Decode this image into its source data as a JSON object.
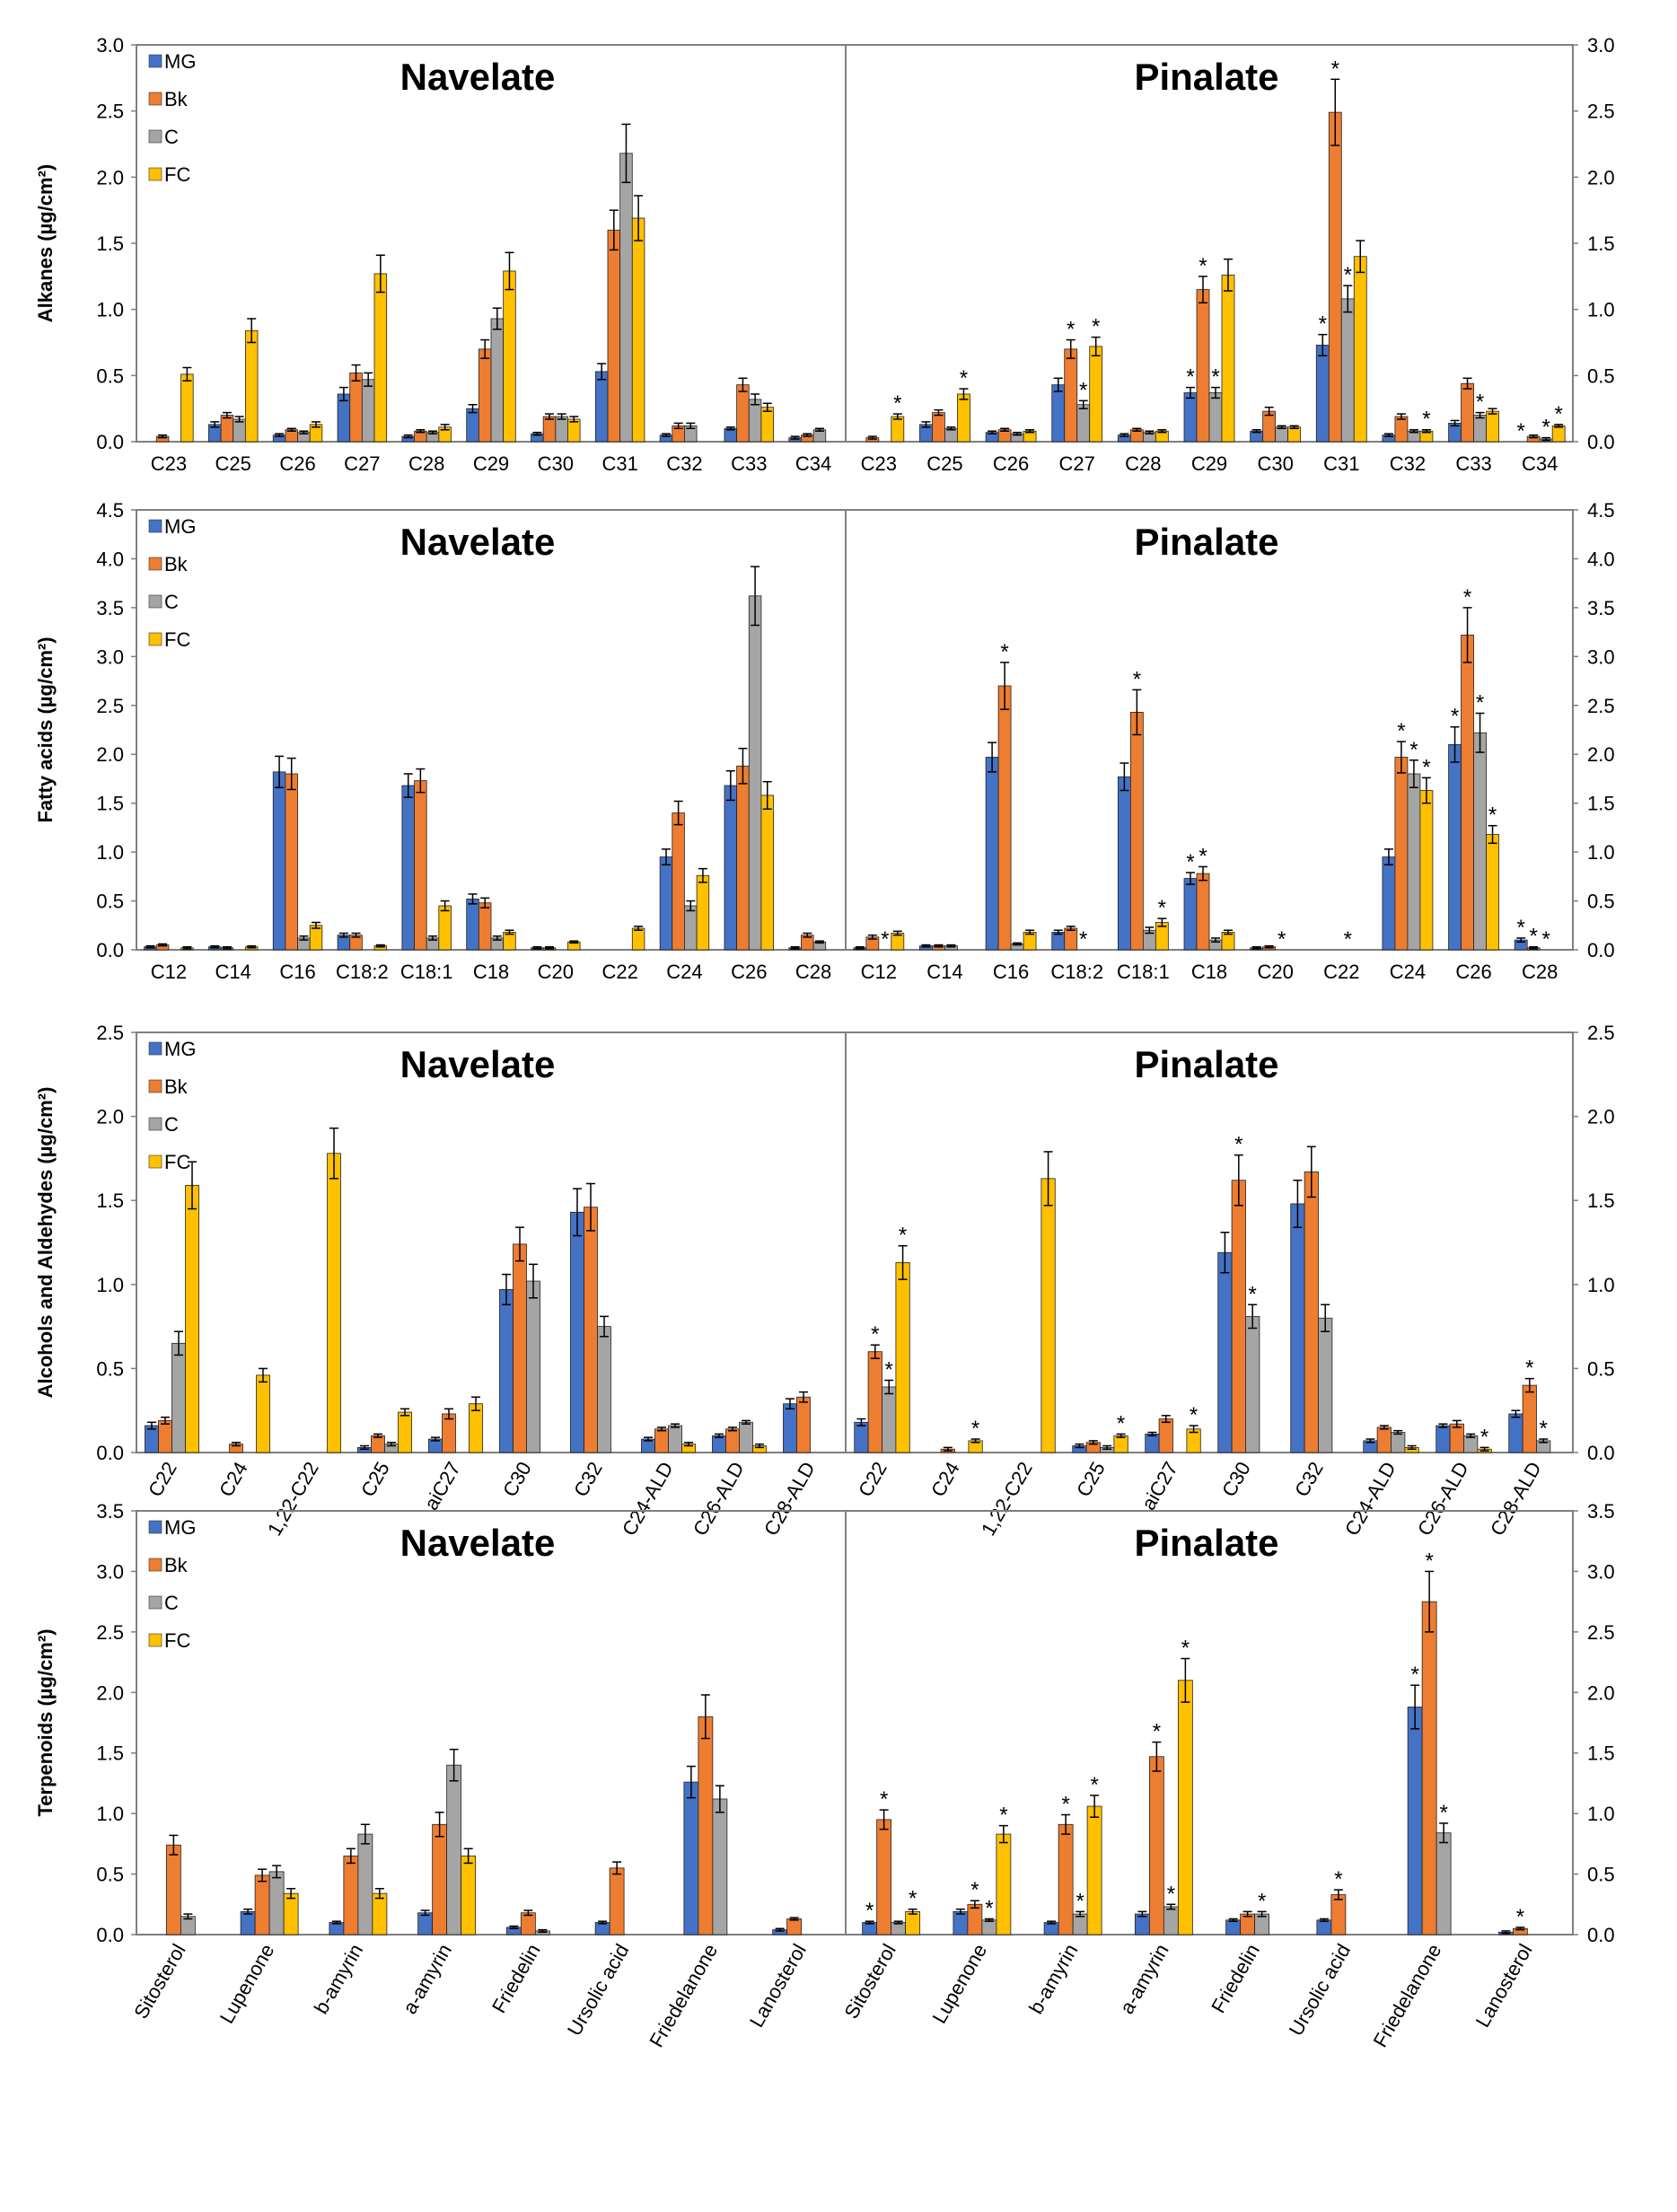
{
  "figure": {
    "series_names": [
      "MG",
      "Bk",
      "C",
      "FC"
    ],
    "colors": {
      "MG": "#4472C4",
      "Bk": "#ED7D31",
      "C": "#A5A5A5",
      "FC": "#FFC000"
    },
    "star_symbol": "*"
  },
  "chart_data": [
    {
      "type": "bar",
      "title_left": "Navelate",
      "title_right": "Pinalate",
      "ylabel": "Alkanes (µg/cm²)",
      "ylim": [
        0,
        3.0
      ],
      "yticks": [
        "0.0",
        "0.5",
        "1.0",
        "1.5",
        "2.0",
        "2.5",
        "3.0"
      ],
      "categories": [
        "C23",
        "C25",
        "C26",
        "C27",
        "C28",
        "C29",
        "C30",
        "C31",
        "C32",
        "C33",
        "C34"
      ],
      "rotate_labels": false,
      "navelate": {
        "values": [
          [
            0,
            0.13,
            0.05,
            0.36,
            0.04,
            0.25,
            0.06,
            0.53,
            0.05,
            0.1,
            0.03
          ],
          [
            0.04,
            0.2,
            0.09,
            0.52,
            0.08,
            0.7,
            0.19,
            1.6,
            0.12,
            0.43,
            0.05
          ],
          [
            0,
            0.17,
            0.07,
            0.47,
            0.07,
            0.93,
            0.19,
            2.18,
            0.12,
            0.32,
            0.09
          ],
          [
            0.51,
            0.84,
            0.13,
            1.27,
            0.11,
            1.29,
            0.17,
            1.69,
            0,
            0.26,
            0
          ]
        ],
        "errors": [
          [
            0,
            0.02,
            0.01,
            0.05,
            0.01,
            0.03,
            0.01,
            0.06,
            0.01,
            0.01,
            0.01
          ],
          [
            0.01,
            0.02,
            0.01,
            0.06,
            0.01,
            0.07,
            0.02,
            0.15,
            0.02,
            0.05,
            0.01
          ],
          [
            0,
            0.02,
            0.01,
            0.05,
            0.01,
            0.08,
            0.02,
            0.22,
            0.02,
            0.04,
            0.01
          ],
          [
            0.05,
            0.09,
            0.02,
            0.14,
            0.02,
            0.14,
            0.02,
            0.17,
            0,
            0.03,
            0
          ]
        ]
      },
      "pinalate": {
        "values": [
          [
            0,
            0.13,
            0.07,
            0.43,
            0.05,
            0.37,
            0.08,
            0.73,
            0.05,
            0.14,
            0
          ],
          [
            0.03,
            0.22,
            0.09,
            0.7,
            0.09,
            1.15,
            0.23,
            2.49,
            0.19,
            0.44,
            0.04
          ],
          [
            0,
            0.1,
            0.06,
            0.28,
            0.07,
            0.37,
            0.11,
            1.08,
            0.08,
            0.2,
            0.02
          ],
          [
            0.19,
            0.36,
            0.08,
            0.72,
            0.08,
            1.26,
            0.11,
            1.4,
            0.08,
            0.23,
            0.12
          ]
        ],
        "errors": [
          [
            0,
            0.02,
            0.01,
            0.05,
            0.01,
            0.04,
            0.01,
            0.08,
            0.01,
            0.02,
            0
          ],
          [
            0.01,
            0.02,
            0.01,
            0.07,
            0.01,
            0.1,
            0.03,
            0.25,
            0.02,
            0.04,
            0.01
          ],
          [
            0,
            0.01,
            0.01,
            0.03,
            0.01,
            0.04,
            0.01,
            0.1,
            0.01,
            0.02,
            0.01
          ],
          [
            0.02,
            0.04,
            0.01,
            0.07,
            0.01,
            0.12,
            0.01,
            0.12,
            0.01,
            0.02,
            0.01
          ]
        ],
        "stars": [
          [
            0,
            0,
            0,
            0,
            0,
            1,
            0,
            1,
            0,
            0,
            1
          ],
          [
            0,
            0,
            0,
            1,
            0,
            1,
            0,
            1,
            0,
            0,
            0
          ],
          [
            0,
            0,
            0,
            1,
            0,
            1,
            0,
            1,
            0,
            1,
            1
          ],
          [
            1,
            1,
            0,
            1,
            0,
            0,
            0,
            0,
            1,
            0,
            1
          ]
        ]
      }
    },
    {
      "type": "bar",
      "title_left": "Navelate",
      "title_right": "Pinalate",
      "ylabel": "Fatty acids (µg/cm²)",
      "ylim": [
        0,
        4.5
      ],
      "yticks": [
        "0.0",
        "0.5",
        "1.0",
        "1.5",
        "2.0",
        "2.5",
        "3.0",
        "3.5",
        "4.0",
        "4.5"
      ],
      "categories": [
        "C12",
        "C14",
        "C16",
        "C18:2",
        "C18:1",
        "C18",
        "C20",
        "C22",
        "C24",
        "C26",
        "C28"
      ],
      "rotate_labels": false,
      "navelate": {
        "values": [
          [
            0.03,
            0.03,
            1.82,
            0.15,
            1.68,
            0.52,
            0.02,
            0,
            0.95,
            1.68,
            0.02
          ],
          [
            0.05,
            0.02,
            1.8,
            0.15,
            1.73,
            0.48,
            0.02,
            0,
            1.4,
            1.88,
            0.15
          ],
          [
            0,
            0,
            0.12,
            0,
            0.12,
            0.12,
            0,
            0,
            0.45,
            3.62,
            0.08
          ],
          [
            0.02,
            0.03,
            0.25,
            0.04,
            0.45,
            0.18,
            0.08,
            0.22,
            0.76,
            1.58,
            0
          ]
        ],
        "errors": [
          [
            0.01,
            0.01,
            0.16,
            0.02,
            0.12,
            0.05,
            0.01,
            0,
            0.08,
            0.15,
            0.01
          ],
          [
            0.01,
            0.01,
            0.16,
            0.02,
            0.12,
            0.05,
            0.01,
            0,
            0.12,
            0.18,
            0.02
          ],
          [
            0,
            0,
            0.02,
            0,
            0.02,
            0.02,
            0,
            0,
            0.05,
            0.3,
            0.01
          ],
          [
            0.01,
            0.01,
            0.03,
            0.01,
            0.05,
            0.02,
            0.01,
            0.02,
            0.07,
            0.14,
            0
          ]
        ]
      },
      "pinalate": {
        "values": [
          [
            0.02,
            0.04,
            1.97,
            0.18,
            1.77,
            0.73,
            0.02,
            0,
            0.95,
            2.1,
            0.1
          ],
          [
            0.13,
            0.04,
            2.7,
            0.22,
            2.43,
            0.78,
            0.03,
            0,
            1.97,
            3.22,
            0.02
          ],
          [
            0,
            0.04,
            0.06,
            0,
            0.2,
            0.1,
            0,
            0,
            1.8,
            2.22,
            0
          ],
          [
            0.17,
            0,
            0.18,
            0,
            0.28,
            0.18,
            0,
            0,
            1.63,
            1.18,
            0
          ]
        ],
        "errors": [
          [
            0.01,
            0.01,
            0.15,
            0.02,
            0.14,
            0.06,
            0.01,
            0,
            0.08,
            0.18,
            0.02
          ],
          [
            0.02,
            0.01,
            0.24,
            0.02,
            0.23,
            0.07,
            0.01,
            0,
            0.16,
            0.28,
            0.01
          ],
          [
            0,
            0.01,
            0.01,
            0,
            0.03,
            0.02,
            0,
            0,
            0.14,
            0.2,
            0
          ],
          [
            0.02,
            0,
            0.02,
            0,
            0.04,
            0.02,
            0,
            0,
            0.13,
            0.09,
            0
          ]
        ],
        "stars": [
          [
            0,
            0,
            0,
            0,
            0,
            1,
            0,
            0,
            0,
            1,
            1
          ],
          [
            0,
            0,
            1,
            0,
            1,
            1,
            0,
            0,
            1,
            1,
            1
          ],
          [
            1,
            0,
            0,
            1,
            0,
            0,
            1,
            1,
            1,
            1,
            1
          ],
          [
            0,
            0,
            0,
            0,
            1,
            0,
            0,
            0,
            1,
            1,
            0
          ]
        ]
      }
    },
    {
      "type": "bar",
      "title_left": "Navelate",
      "title_right": "Pinalate",
      "ylabel": "Alcohols and Aldehydes (µg/cm²)",
      "ylim": [
        0,
        2.5
      ],
      "yticks": [
        "0.0",
        "0.5",
        "1.0",
        "1.5",
        "2.0",
        "2.5"
      ],
      "categories": [
        "C22",
        "C24",
        "1,22-C22",
        "C25",
        "aiC27",
        "C30",
        "C32",
        "C24-ALD",
        "C26-ALD",
        "C28-ALD"
      ],
      "rotate_labels": true,
      "navelate": {
        "values": [
          [
            0.16,
            0,
            0,
            0.03,
            0.08,
            0.97,
            1.43,
            0.08,
            0.1,
            0.29
          ],
          [
            0.19,
            0.05,
            0,
            0.1,
            0.23,
            1.24,
            1.46,
            0.14,
            0.14,
            0.33
          ],
          [
            0.65,
            0,
            0,
            0.05,
            0,
            1.02,
            0.75,
            0.16,
            0.18,
            0
          ],
          [
            1.59,
            0.46,
            1.78,
            0.24,
            0.29,
            0,
            0,
            0.05,
            0.04,
            0
          ]
        ],
        "errors": [
          [
            0.02,
            0,
            0,
            0.01,
            0.01,
            0.09,
            0.14,
            0.01,
            0.01,
            0.03
          ],
          [
            0.02,
            0.01,
            0,
            0.01,
            0.03,
            0.1,
            0.14,
            0.01,
            0.01,
            0.03
          ],
          [
            0.07,
            0,
            0,
            0.01,
            0,
            0.1,
            0.06,
            0.01,
            0.01,
            0
          ],
          [
            0.14,
            0.04,
            0.15,
            0.02,
            0.04,
            0,
            0,
            0.01,
            0.01,
            0
          ]
        ]
      },
      "pinalate": {
        "values": [
          [
            0.18,
            0,
            0,
            0.04,
            0.11,
            1.19,
            1.48,
            0.07,
            0.16,
            0.23
          ],
          [
            0.6,
            0.02,
            0,
            0.06,
            0.2,
            1.62,
            1.67,
            0.15,
            0.17,
            0.4
          ],
          [
            0.39,
            0,
            0,
            0.03,
            0,
            0.81,
            0.8,
            0.12,
            0.1,
            0.07
          ],
          [
            1.13,
            0.07,
            1.63,
            0.1,
            0.14,
            0,
            0,
            0.03,
            0.02,
            0
          ]
        ],
        "errors": [
          [
            0.02,
            0,
            0,
            0.01,
            0.01,
            0.12,
            0.14,
            0.01,
            0.01,
            0.02
          ],
          [
            0.04,
            0.01,
            0,
            0.01,
            0.02,
            0.15,
            0.15,
            0.01,
            0.02,
            0.04
          ],
          [
            0.04,
            0,
            0,
            0.01,
            0,
            0.07,
            0.08,
            0.01,
            0.01,
            0.01
          ],
          [
            0.1,
            0.01,
            0.16,
            0.01,
            0.02,
            0,
            0,
            0.01,
            0.01,
            0
          ]
        ],
        "stars": [
          [
            0,
            0,
            0,
            0,
            0,
            0,
            0,
            0,
            0,
            0
          ],
          [
            1,
            0,
            0,
            0,
            0,
            1,
            0,
            0,
            0,
            1
          ],
          [
            1,
            0,
            0,
            0,
            0,
            1,
            0,
            0,
            0,
            1
          ],
          [
            1,
            1,
            0,
            1,
            1,
            0,
            0,
            0,
            1,
            0
          ]
        ]
      }
    },
    {
      "type": "bar",
      "title_left": "Navelate",
      "title_right": "Pinalate",
      "ylabel": "Terpenoids (µg/cm²)",
      "ylim": [
        0,
        3.5
      ],
      "yticks": [
        "0.0",
        "0.5",
        "1.0",
        "1.5",
        "2.0",
        "2.5",
        "3.0",
        "3.5"
      ],
      "categories": [
        "Sitosterol",
        "Lupenone",
        "b-amyrin",
        "a-amyrin",
        "Friedelin",
        "Ursolic acid",
        "Friedelanone",
        "Lanosterol"
      ],
      "rotate_labels": true,
      "navelate": {
        "values": [
          [
            0,
            0.19,
            0.1,
            0.18,
            0.06,
            0.1,
            1.26,
            0.04
          ],
          [
            0.74,
            0.49,
            0.65,
            0.91,
            0.18,
            0.55,
            1.8,
            0.13
          ],
          [
            0.15,
            0.52,
            0.83,
            1.4,
            0.03,
            0,
            1.12,
            0
          ],
          [
            0,
            0.34,
            0.34,
            0.65,
            0,
            0,
            0,
            0
          ]
        ],
        "errors": [
          [
            0,
            0.02,
            0.01,
            0.02,
            0.01,
            0.01,
            0.13,
            0.01
          ],
          [
            0.08,
            0.05,
            0.06,
            0.1,
            0.02,
            0.05,
            0.18,
            0.01
          ],
          [
            0.02,
            0.05,
            0.08,
            0.13,
            0.01,
            0,
            0.11,
            0
          ],
          [
            0,
            0.04,
            0.04,
            0.06,
            0,
            0,
            0,
            0
          ]
        ]
      },
      "pinalate": {
        "values": [
          [
            0.1,
            0.19,
            0.1,
            0.17,
            0.12,
            0.12,
            1.88,
            0.02
          ],
          [
            0.95,
            0.25,
            0.91,
            1.47,
            0.17,
            0.33,
            2.75,
            0.05
          ],
          [
            0.1,
            0.12,
            0.17,
            0.23,
            0.17,
            0,
            0.84,
            0
          ],
          [
            0.19,
            0.83,
            1.06,
            2.1,
            0,
            0,
            0,
            0
          ]
        ],
        "errors": [
          [
            0.01,
            0.02,
            0.01,
            0.02,
            0.01,
            0.01,
            0.18,
            0.01
          ],
          [
            0.08,
            0.03,
            0.08,
            0.12,
            0.02,
            0.04,
            0.25,
            0.01
          ],
          [
            0.01,
            0.01,
            0.02,
            0.02,
            0.02,
            0,
            0.08,
            0
          ],
          [
            0.02,
            0.07,
            0.09,
            0.18,
            0,
            0,
            0,
            0
          ]
        ],
        "stars": [
          [
            1,
            0,
            0,
            0,
            0,
            0,
            1,
            0
          ],
          [
            1,
            1,
            1,
            1,
            0,
            1,
            1,
            1
          ],
          [
            0,
            1,
            1,
            1,
            1,
            0,
            1,
            0
          ],
          [
            1,
            1,
            1,
            1,
            0,
            0,
            0,
            0
          ]
        ]
      }
    }
  ]
}
